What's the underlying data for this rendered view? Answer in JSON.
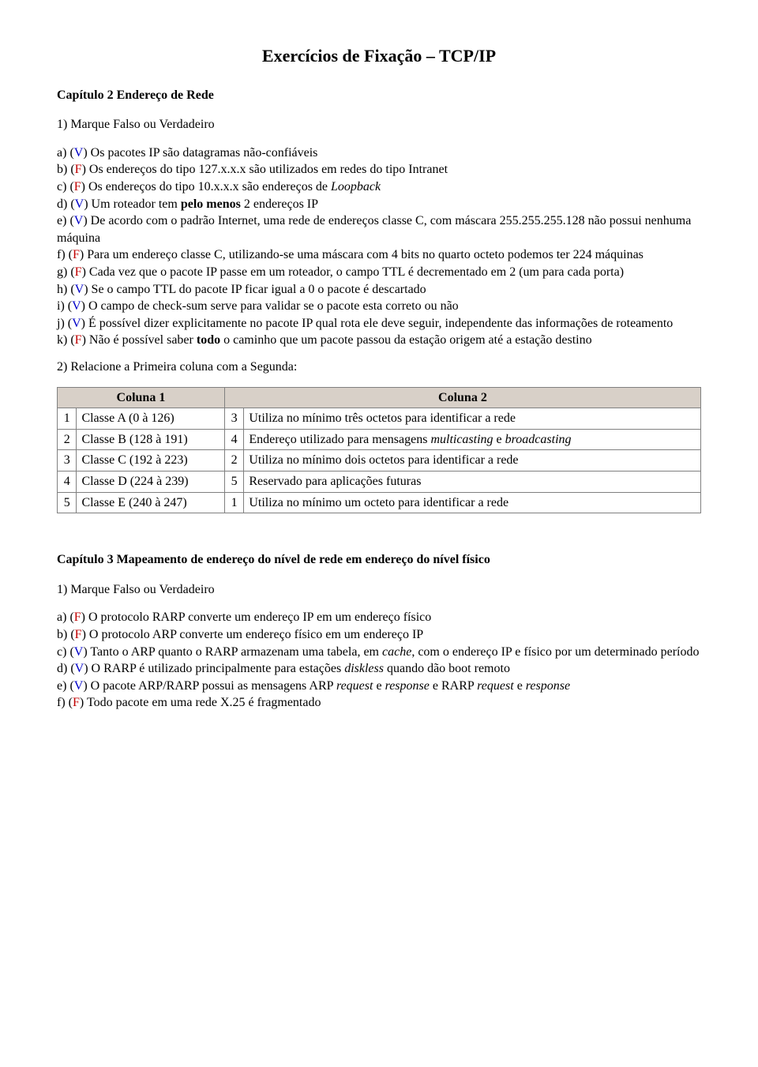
{
  "title": "Exercícios de Fixação – TCP/IP",
  "chapter2": {
    "heading": "Capítulo 2 Endereço de Rede",
    "q1_label": "1) Marque Falso ou Verdadeiro",
    "items": {
      "a": {
        "letter": "a)",
        "mark": "V",
        "before": "Os pacotes IP são datagramas não-confiáveis"
      },
      "b": {
        "letter": "b)",
        "mark": "F",
        "before": "Os endereços do tipo 127.x.x.x  são utilizados em redes do tipo Intranet"
      },
      "c": {
        "letter": "c)",
        "mark": "F",
        "before": "Os endereços do tipo 10.x.x.x são endereços de ",
        "italic": "Loopback"
      },
      "d": {
        "letter": "d)",
        "mark": "V",
        "before": "Um roteador tem ",
        "bold": "pelo menos",
        "after": " 2 endereços IP"
      },
      "e": {
        "letter": "e)",
        "mark": "V",
        "before": "De acordo com o padrão Internet, uma rede de endereços classe C, com máscara 255.255.255.128 não possui nenhuma máquina"
      },
      "f": {
        "letter": "f)",
        "mark": "F",
        "before": "Para um endereço classe C, utilizando-se uma máscara com 4 bits no quarto octeto podemos ter 224 máquinas"
      },
      "g": {
        "letter": "g)",
        "mark": "F",
        "before": "Cada vez que o pacote IP passe em um roteador, o campo TTL é decrementado em 2 (um para cada porta)"
      },
      "h": {
        "letter": "h)",
        "mark": "V",
        "before": "Se o campo TTL do pacote IP ficar igual a 0 o pacote é descartado"
      },
      "i": {
        "letter": "i)",
        "mark": "V",
        "before": "O campo de check-sum serve para validar se o pacote esta correto ou não"
      },
      "j": {
        "letter": "j)",
        "mark": "V",
        "before": "É possível dizer explicitamente no pacote IP qual rota ele deve seguir, independente das informações de roteamento"
      },
      "k": {
        "letter": "k)",
        "mark": "F",
        "before": "Não é possível saber ",
        "bold": "todo",
        "after": " o caminho que um pacote passou da estação origem até a estação destino"
      }
    },
    "q2_label": "2) Relacione a Primeira coluna com a Segunda:"
  },
  "table": {
    "head1": "Coluna 1",
    "head2": "Coluna 2",
    "rows": [
      {
        "n1": "1",
        "c1": "Classe A (0 à 126)",
        "n2": "3",
        "c2": "Utiliza no mínimo três octetos para identificar a rede"
      },
      {
        "n1": "2",
        "c1": "Classe B (128 à 191)",
        "n2": "4",
        "c2_before": "Endereço utilizado para mensagens ",
        "c2_i1": "multicasting",
        "c2_mid": " e ",
        "c2_i2": "broadcasting",
        "justify": true
      },
      {
        "n1": "3",
        "c1": "Classe C (192 à 223)",
        "n2": "2",
        "c2": "Utiliza no mínimo dois octetos para identificar a rede"
      },
      {
        "n1": "4",
        "c1": "Classe D (224 à 239)",
        "n2": "5",
        "c2": "Reservado para aplicações futuras"
      },
      {
        "n1": "5",
        "c1": "Classe E (240 à 247)",
        "n2": "1",
        "c2": "Utiliza no mínimo um octeto para identificar a rede"
      }
    ]
  },
  "chapter3": {
    "heading": "Capítulo 3 Mapeamento de endereço do nível de rede em endereço do nível físico",
    "q1_label": "1) Marque Falso ou Verdadeiro",
    "items": {
      "a": {
        "letter": "a)",
        "mark": "F",
        "before": "O protocolo RARP converte um endereço IP em um endereço físico"
      },
      "b": {
        "letter": "b)",
        "mark": "F",
        "before": "O protocolo ARP converte um endereço físico em um endereço IP"
      },
      "c": {
        "letter": "c)",
        "mark": "V",
        "before": "Tanto o ARP quanto o RARP armazenam uma tabela, em ",
        "italic": "cache",
        "after": ", com o endereço IP e físico por um determinado período"
      },
      "d": {
        "letter": "d)",
        "mark": "V",
        "before": "O RARP é utilizado principalmente para estações ",
        "italic": "diskless",
        "after": " quando dão boot remoto"
      },
      "e": {
        "letter": "e)",
        "mark": "V",
        "before_complex": true,
        "t1": "O pacote ARP/RARP possui as mensagens ARP ",
        "i1": "request",
        "t2": " e ",
        "i2": "response",
        "t3": " e RARP ",
        "i3": "request",
        "t4": " e ",
        "i4": "response"
      },
      "f": {
        "letter": "f)",
        "mark": "F",
        "before": "Todo pacote em uma rede X.25 é fragmentado"
      }
    }
  }
}
